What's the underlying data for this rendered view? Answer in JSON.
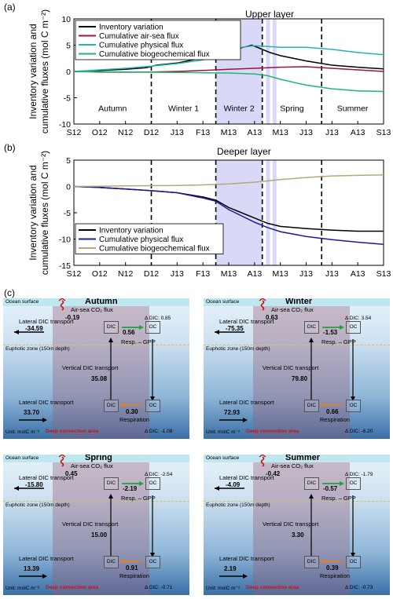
{
  "panel_labels": {
    "a": "(a)",
    "b": "(b)",
    "c": "(c)"
  },
  "chart_data": [
    {
      "type": "line",
      "title": "Upper layer",
      "ylabel_line1": "Inventory variation and",
      "ylabel_line2": "cumulative fluxes (mol C m⁻²)",
      "ylim": [
        -10,
        10
      ],
      "yticks": [
        -10,
        -5,
        0,
        5,
        10
      ],
      "xticks": [
        "S12",
        "O12",
        "N12",
        "D12",
        "J13",
        "F13",
        "M13",
        "A13",
        "M13",
        "J13",
        "J13",
        "A13",
        "S13"
      ],
      "seasons": [
        "Autumn",
        "Winter 1",
        "Winter 2",
        "Spring",
        "Summer"
      ],
      "dashed_lines_month": [
        3,
        5.5,
        7.3,
        9.6
      ],
      "shaded_month": [
        5.5,
        7.3
      ],
      "shaded_strips_month": [
        [
          7.45,
          7.6
        ],
        [
          7.7,
          7.85
        ]
      ],
      "legend_placement": "top-left",
      "series": [
        {
          "name": "Inventory variation",
          "color": "#000000",
          "x": [
            0,
            1,
            2,
            2.8,
            3.2,
            4,
            5,
            5.5,
            6,
            6.5,
            6.9,
            7.2,
            7.6,
            8,
            9,
            10,
            11,
            12
          ],
          "y": [
            0,
            0.2,
            0.4,
            0.7,
            1.2,
            1.6,
            2.6,
            3.2,
            4.0,
            4.5,
            5.0,
            4.4,
            3.6,
            3.0,
            2.0,
            1.2,
            0.8,
            0.5
          ]
        },
        {
          "name": "Cumulative air-sea flux",
          "color": "#a01040",
          "x": [
            0,
            1,
            2,
            3,
            4,
            5,
            6,
            7,
            8,
            9,
            10,
            11,
            12
          ],
          "y": [
            0,
            -0.1,
            -0.15,
            -0.1,
            0,
            0.2,
            0.4,
            0.6,
            0.8,
            0.9,
            0.6,
            0.3,
            0
          ]
        },
        {
          "name": "Cumulative physical flux",
          "color": "#27b4b0",
          "x": [
            0,
            1,
            2,
            3,
            4,
            5,
            5.5,
            6,
            6.5,
            7,
            7.3,
            8,
            9,
            10,
            11,
            12
          ],
          "y": [
            0,
            0.3,
            0.6,
            1.0,
            1.5,
            2.2,
            3.0,
            4.0,
            4.6,
            4.9,
            4.8,
            4.6,
            4.6,
            4.2,
            3.6,
            3.2
          ]
        },
        {
          "name": "Cumulative biogeochemical flux",
          "color": "#1fb86c",
          "x": [
            0,
            1,
            2,
            3,
            4,
            5,
            6,
            7,
            7.5,
            8,
            9,
            10,
            11,
            12
          ],
          "y": [
            0,
            -0.05,
            -0.1,
            -0.15,
            -0.2,
            -0.25,
            -0.3,
            -0.5,
            -0.8,
            -1.5,
            -2.6,
            -3.3,
            -3.7,
            -3.8
          ]
        }
      ]
    },
    {
      "type": "line",
      "title": "Deeper layer",
      "ylabel_line1": "Inventory variation and",
      "ylabel_line2": "cumulative fluxes (mol C m⁻²)",
      "ylim": [
        -15,
        5
      ],
      "yticks": [
        -15,
        -10,
        -5,
        0,
        5
      ],
      "xticks": [
        "S12",
        "O12",
        "N12",
        "D12",
        "J13",
        "F13",
        "M13",
        "A13",
        "M13",
        "J13",
        "J13",
        "A13",
        "S13"
      ],
      "dashed_lines_month": [
        3,
        5.5,
        7.3,
        9.6
      ],
      "shaded_month": [
        5.5,
        7.3
      ],
      "shaded_strips_month": [
        [
          7.45,
          7.6
        ],
        [
          7.7,
          7.85
        ]
      ],
      "legend_placement": "bottom-left",
      "series": [
        {
          "name": "Inventory variation",
          "color": "#000000",
          "x": [
            0,
            1,
            2,
            3,
            4,
            5,
            5.5,
            6,
            6.5,
            7,
            7.5,
            8,
            9,
            10,
            11,
            12
          ],
          "y": [
            0,
            -0.2,
            -0.5,
            -0.8,
            -1.2,
            -2.0,
            -2.6,
            -4.0,
            -5.0,
            -6.0,
            -7.0,
            -7.6,
            -8.0,
            -8.3,
            -8.5,
            -8.5
          ]
        },
        {
          "name": "Cumulative physical flux",
          "color": "#1a1aa0",
          "x": [
            0,
            1,
            2,
            3,
            4,
            5,
            5.5,
            6,
            6.5,
            7,
            7.5,
            8,
            9,
            10,
            11,
            12
          ],
          "y": [
            0,
            -0.2,
            -0.5,
            -0.8,
            -1.2,
            -2.2,
            -2.8,
            -4.4,
            -5.6,
            -6.8,
            -7.8,
            -8.6,
            -9.5,
            -10.1,
            -10.6,
            -11.0
          ]
        },
        {
          "name": "Cumulative biogeochemical flux",
          "color": "#b5a77a",
          "x": [
            0,
            1,
            2,
            3,
            4,
            5,
            6,
            7,
            8,
            9,
            10,
            11,
            12
          ],
          "y": [
            0,
            0.05,
            0.1,
            0.15,
            0.2,
            0.3,
            0.5,
            0.8,
            1.3,
            1.7,
            2.0,
            2.1,
            2.2
          ]
        }
      ]
    }
  ],
  "schematic": {
    "common": {
      "ocean_surface": "Ocean surface",
      "air_sea": "Air-sea CO₂ flux",
      "lateral": "Lateral DIC transport",
      "euphotic": "Euphotic zone (150m depth)",
      "vertical": "Vertical DIC transport",
      "resp_gpp": "Resp. – GPP",
      "respiration": "Respiration",
      "unit": "Unit: molC m⁻²",
      "deep_area": "Deep convection area",
      "dic": "DIC",
      "oc": "OC"
    },
    "panels": [
      {
        "title": "Autumn",
        "air_sea": "-0.19",
        "delta_top": "Δ DIC: 0.85",
        "lateral_top": "-34.59",
        "resp_top": "0.56",
        "vertical": "35.08",
        "lateral_bottom": "33.70",
        "resp_bottom": "0.30",
        "delta_bottom": "Δ DIC: -1.08"
      },
      {
        "title": "Winter",
        "air_sea": "0.63",
        "delta_top": "Δ DIC: 3.54",
        "lateral_top": "-75.35",
        "resp_top": "-1.53",
        "vertical": "79.80",
        "lateral_bottom": "72.93",
        "resp_bottom": "0.66",
        "delta_bottom": "Δ DIC: -6.20"
      },
      {
        "title": "Spring",
        "air_sea": "0.45",
        "delta_top": "Δ DIC: -2.54",
        "lateral_top": "-15.80",
        "resp_top": "-2.19",
        "vertical": "15.00",
        "lateral_bottom": "13.39",
        "resp_bottom": "0.91",
        "delta_bottom": "Δ DIC: -0.71"
      },
      {
        "title": "Summer",
        "air_sea": "-0.42",
        "delta_top": "Δ DIC: -1.79",
        "lateral_top": "-4.09",
        "resp_top": "-0.57",
        "vertical": "3.30",
        "lateral_bottom": "2.19",
        "resp_bottom": "0.39",
        "delta_bottom": "Δ DIC: -0.73"
      }
    ]
  }
}
